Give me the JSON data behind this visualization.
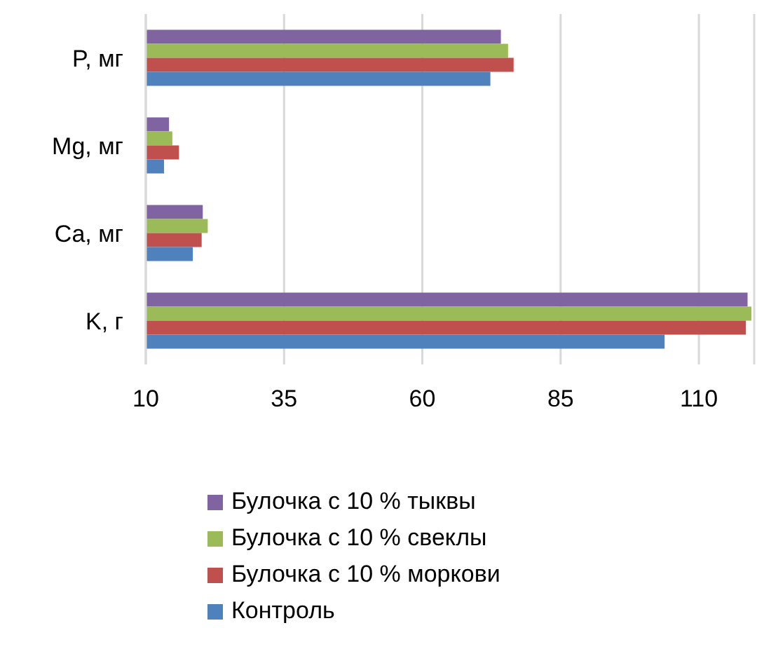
{
  "chart_data": {
    "type": "bar",
    "orientation": "horizontal",
    "categories": [
      "P, мг",
      "Mg, мг",
      "Ca, мг",
      "K, г"
    ],
    "series": [
      {
        "name": "Булочка с 10 % тыквы",
        "color": "#8064a2",
        "values": [
          74.2,
          14.2,
          20.3,
          118.8
        ]
      },
      {
        "name": "Булочка с 10 % свеклы",
        "color": "#9bbb59",
        "values": [
          75.5,
          14.8,
          21.2,
          119.5
        ]
      },
      {
        "name": "Булочка с 10 % моркови",
        "color": "#c0504d",
        "values": [
          76.5,
          16.0,
          20.1,
          118.5
        ]
      },
      {
        "name": "Контроль",
        "color": "#4f81bd",
        "values": [
          72.3,
          13.3,
          18.5,
          103.8
        ]
      }
    ],
    "xlim": [
      10,
      120
    ],
    "xticks": [
      10,
      35,
      60,
      85,
      110
    ],
    "grid": "x",
    "legend": "bottom"
  }
}
